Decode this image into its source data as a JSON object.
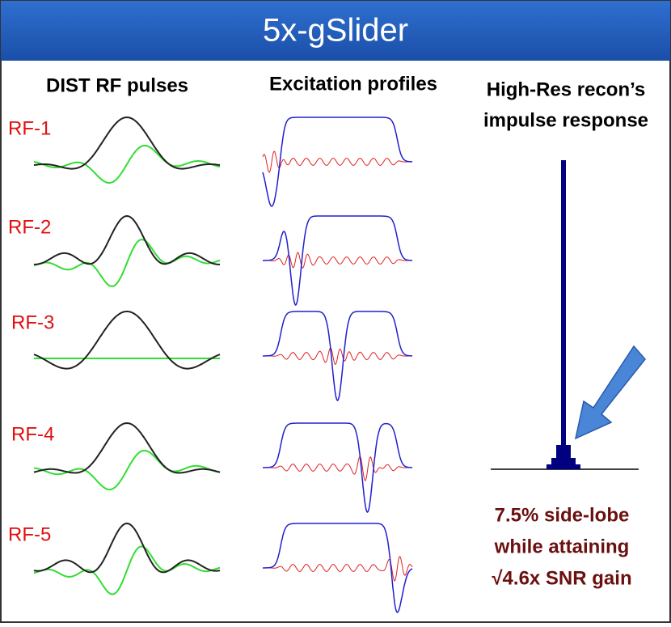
{
  "header": {
    "title": "5x-gSlider"
  },
  "headers": {
    "rf": "DIST RF pulses",
    "profiles": "Excitation profiles",
    "impulse": [
      "High-Res recon’s",
      "impulse response"
    ]
  },
  "rows": [
    {
      "label": "RF-1"
    },
    {
      "label": "RF-2"
    },
    {
      "label": "RF-3"
    },
    {
      "label": "RF-4"
    },
    {
      "label": "RF-5"
    }
  ],
  "note": [
    "7.5% side-lobe",
    "while attaining",
    "√4.6x SNR gain"
  ]
}
